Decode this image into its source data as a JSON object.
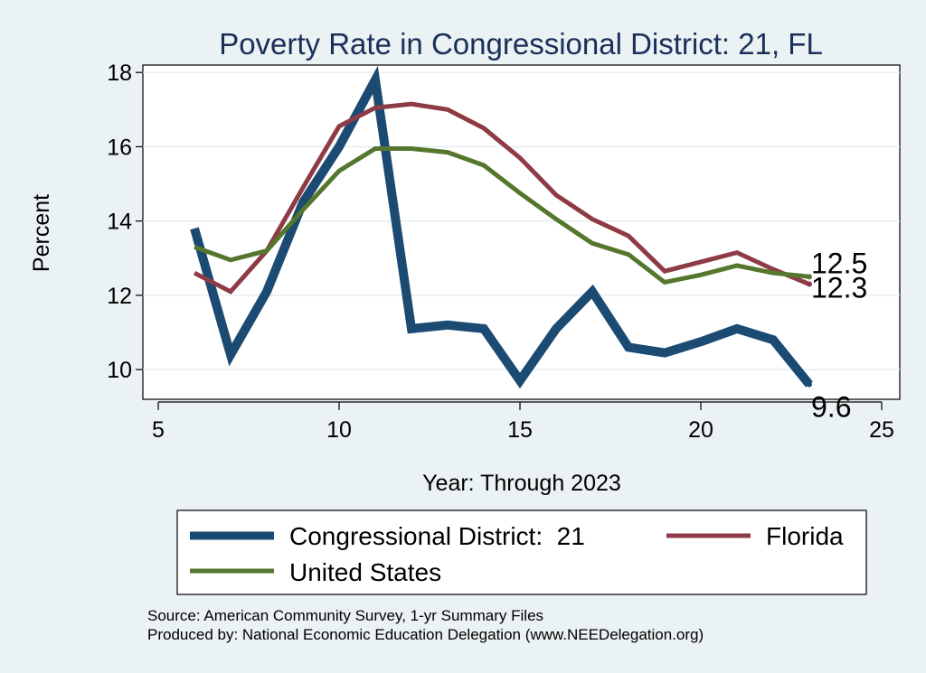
{
  "chart_data": {
    "type": "line",
    "title": "Poverty Rate in Congressional District:  21, FL",
    "xlabel": "Year: Through 2023",
    "ylabel": "Percent",
    "xlim": [
      5,
      25
    ],
    "ylim": [
      9.2,
      18.2
    ],
    "xticks": [
      5,
      10,
      15,
      20,
      25
    ],
    "yticks": [
      10,
      12,
      14,
      16,
      18
    ],
    "grid": true,
    "series": [
      {
        "name": "Congressional District:  21",
        "color": "#1b4a72",
        "x": [
          6,
          7,
          8,
          9,
          10,
          11,
          12,
          13,
          14,
          15,
          16,
          17,
          18,
          19,
          20,
          21,
          22,
          23
        ],
        "values": [
          13.8,
          10.4,
          12.1,
          14.5,
          16.0,
          17.8,
          11.1,
          11.2,
          11.1,
          9.7,
          11.1,
          12.1,
          10.6,
          10.45,
          10.75,
          11.1,
          10.8,
          9.6
        ],
        "end_label": "9.6"
      },
      {
        "name": "Florida",
        "color": "#8e3b46",
        "x": [
          6,
          7,
          8,
          9,
          10,
          11,
          12,
          13,
          14,
          15,
          16,
          17,
          18,
          19,
          20,
          21,
          22,
          23
        ],
        "values": [
          12.6,
          12.1,
          13.2,
          14.9,
          16.55,
          17.05,
          17.15,
          17.0,
          16.5,
          15.7,
          14.7,
          14.05,
          13.6,
          12.65,
          12.9,
          13.15,
          12.7,
          12.3
        ],
        "end_label": "12.3"
      },
      {
        "name": "United States",
        "color": "#55772d",
        "x": [
          6,
          7,
          8,
          9,
          10,
          11,
          12,
          13,
          14,
          15,
          16,
          17,
          18,
          19,
          20,
          21,
          22,
          23
        ],
        "values": [
          13.3,
          12.95,
          13.2,
          14.3,
          15.35,
          15.95,
          15.95,
          15.85,
          15.5,
          14.75,
          14.05,
          13.4,
          13.1,
          12.35,
          12.55,
          12.8,
          12.6,
          12.5
        ],
        "end_label": "12.5"
      }
    ],
    "legend": {
      "placement": "bottom",
      "items": [
        "Congressional District:  21",
        "Florida",
        "United States"
      ]
    },
    "notes": [
      "Source: American Community Survey, 1-yr Summary Files",
      "Produced by: National Economic Education Delegation (www.NEEDelegation.org)"
    ]
  }
}
